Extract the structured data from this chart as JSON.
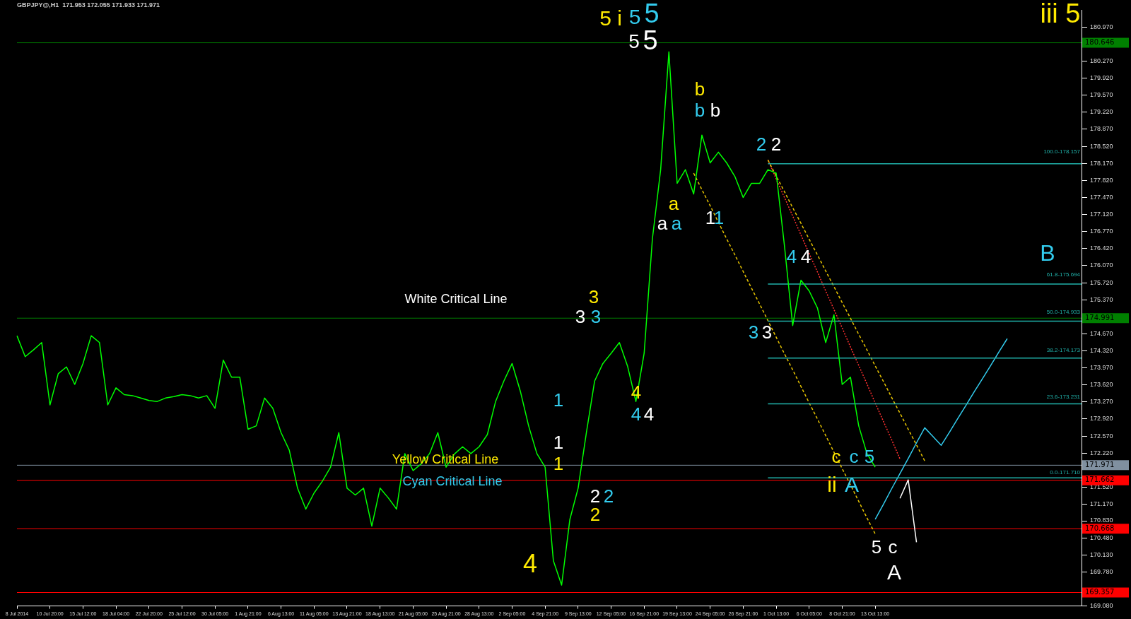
{
  "chart_data": {
    "type": "line",
    "title": "GBPJPY@,H1  171.953 172.055 171.933 171.971",
    "categories": [
      "8 Jul 2014",
      null,
      null,
      null,
      "10 Jul 20:00",
      null,
      null,
      null,
      "15 Jul 12:00",
      null,
      null,
      null,
      "18 Jul 04:00",
      null,
      null,
      null,
      "22 Jul 20:00",
      null,
      null,
      null,
      "25 Jul 12:00",
      null,
      null,
      null,
      "30 Jul 05:00",
      null,
      null,
      null,
      "1 Aug 21:00",
      null,
      null,
      null,
      "6 Aug 13:00",
      null,
      null,
      null,
      "11 Aug 05:00",
      null,
      null,
      null,
      "13 Aug 21:00",
      null,
      null,
      null,
      "18 Aug 13:00",
      null,
      null,
      null,
      "21 Aug 05:00",
      null,
      null,
      null,
      "25 Aug 21:00",
      null,
      null,
      null,
      "28 Aug 13:00",
      null,
      null,
      null,
      "2 Sep 05:00",
      null,
      null,
      null,
      "4 Sep 21:00",
      null,
      null,
      null,
      "9 Sep 13:00",
      null,
      null,
      null,
      "12 Sep 05:00",
      null,
      null,
      null,
      "16 Sep 21:00",
      null,
      null,
      null,
      "19 Sep 13:00",
      null,
      null,
      null,
      "24 Sep 05:00",
      null,
      null,
      null,
      "26 Sep 21:00",
      null,
      null,
      null,
      "1 Oct 13:00",
      null,
      null,
      null,
      "6 Oct 05:00",
      null,
      null,
      null,
      "8 Oct 21:00",
      null,
      null,
      null,
      "13 Oct 13:00",
      null,
      null,
      null,
      null,
      null,
      null,
      null,
      null,
      null,
      null,
      null,
      null,
      null,
      null,
      null,
      null,
      null,
      null,
      null,
      null,
      null,
      null,
      null,
      null,
      null
    ],
    "series": [
      {
        "color": "#00ff00",
        "values": [
          174.63,
          174.2,
          174.34,
          174.49,
          173.21,
          173.85,
          173.99,
          173.63,
          174.06,
          174.63,
          174.49,
          173.21,
          173.56,
          173.42,
          173.4,
          173.35,
          173.3,
          173.28,
          173.35,
          173.38,
          173.42,
          173.4,
          173.35,
          173.4,
          173.14,
          174.13,
          173.78,
          173.78,
          172.71,
          172.78,
          173.35,
          173.14,
          172.64,
          172.28,
          171.5,
          171.07,
          171.4,
          171.64,
          171.93,
          172.64,
          171.5,
          171.36,
          171.5,
          170.72,
          171.5,
          171.3,
          171.07,
          172.21,
          171.86,
          172.0,
          172.21,
          172.64,
          171.93,
          172.2,
          172.35,
          172.21,
          172.35,
          172.6,
          173.28,
          173.7,
          174.06,
          173.49,
          172.78,
          172.21,
          171.93,
          170.01,
          169.51,
          170.86,
          171.5,
          172.64,
          173.7,
          174.06,
          174.27,
          174.49,
          174.0,
          173.28,
          174.27,
          176.62,
          178.04,
          180.46,
          177.76,
          178.04,
          177.54,
          178.75,
          178.18,
          178.4,
          178.18,
          177.9,
          177.47,
          177.76,
          177.76,
          178.04,
          177.97,
          176.48,
          174.84,
          175.77,
          175.55,
          175.2,
          174.49,
          175.06,
          173.63,
          173.78,
          172.78,
          172.21,
          171.93,
          null,
          null,
          null,
          null,
          null,
          null,
          null,
          null,
          null,
          null,
          null,
          null,
          null,
          null,
          null,
          null,
          null,
          null,
          null,
          null,
          null,
          null,
          null,
          null,
          null
        ]
      },
      {
        "color": "#20b2aa",
        "values": [
          null,
          null,
          null,
          null,
          null,
          null,
          null,
          null,
          null,
          null,
          null,
          null,
          null,
          null,
          null,
          null,
          null,
          null,
          null,
          null,
          null,
          null,
          null,
          null,
          null,
          null,
          null,
          null,
          null,
          null,
          null,
          null,
          null,
          null,
          null,
          null,
          null,
          null,
          null,
          null,
          null,
          null,
          null,
          null,
          null,
          null,
          null,
          null,
          null,
          null,
          null,
          null,
          null,
          null,
          null,
          null,
          null,
          null,
          null,
          null,
          null,
          null,
          null,
          null,
          null,
          null,
          null,
          null,
          null,
          null,
          null,
          null,
          null,
          null,
          null,
          null,
          null,
          null,
          null,
          null,
          null,
          null,
          null,
          null,
          null,
          null,
          null,
          null,
          null,
          null,
          null,
          178.16,
          178.16,
          178.16,
          178.16,
          178.16,
          178.16,
          178.16,
          178.16,
          178.16,
          178.16,
          178.16,
          178.16,
          178.16,
          178.16,
          178.16,
          178.16,
          178.16,
          178.16,
          178.16,
          178.16,
          178.16,
          178.16,
          178.16,
          178.16,
          178.16,
          178.16,
          178.16,
          178.16,
          178.16,
          178.16,
          178.16,
          178.16,
          178.16,
          178.16,
          178.16,
          178.16,
          178.16,
          178.16,
          178.16
        ]
      },
      {
        "color": "#20b2aa",
        "values": [
          null,
          null,
          null,
          null,
          null,
          null,
          null,
          null,
          null,
          null,
          null,
          null,
          null,
          null,
          null,
          null,
          null,
          null,
          null,
          null,
          null,
          null,
          null,
          null,
          null,
          null,
          null,
          null,
          null,
          null,
          null,
          null,
          null,
          null,
          null,
          null,
          null,
          null,
          null,
          null,
          null,
          null,
          null,
          null,
          null,
          null,
          null,
          null,
          null,
          null,
          null,
          null,
          null,
          null,
          null,
          null,
          null,
          null,
          null,
          null,
          null,
          null,
          null,
          null,
          null,
          null,
          null,
          null,
          null,
          null,
          null,
          null,
          null,
          null,
          null,
          null,
          null,
          null,
          null,
          null,
          null,
          null,
          null,
          null,
          null,
          null,
          null,
          null,
          null,
          null,
          null,
          175.69,
          175.69,
          175.69,
          175.69,
          175.69,
          175.69,
          175.69,
          175.69,
          175.69,
          175.69,
          175.69,
          175.69,
          175.69,
          175.69,
          175.69,
          175.69,
          175.69,
          175.69,
          175.69,
          175.69,
          175.69,
          175.69,
          175.69,
          175.69,
          175.69,
          175.69,
          175.69,
          175.69,
          175.69,
          175.69,
          175.69,
          175.69,
          175.69,
          175.69,
          175.69,
          175.69,
          175.69,
          175.69,
          175.69
        ]
      },
      {
        "color": "#20b2aa",
        "values": [
          null,
          null,
          null,
          null,
          null,
          null,
          null,
          null,
          null,
          null,
          null,
          null,
          null,
          null,
          null,
          null,
          null,
          null,
          null,
          null,
          null,
          null,
          null,
          null,
          null,
          null,
          null,
          null,
          null,
          null,
          null,
          null,
          null,
          null,
          null,
          null,
          null,
          null,
          null,
          null,
          null,
          null,
          null,
          null,
          null,
          null,
          null,
          null,
          null,
          null,
          null,
          null,
          null,
          null,
          null,
          null,
          null,
          null,
          null,
          null,
          null,
          null,
          null,
          null,
          null,
          null,
          null,
          null,
          null,
          null,
          null,
          null,
          null,
          null,
          null,
          null,
          null,
          null,
          null,
          null,
          null,
          null,
          null,
          null,
          null,
          null,
          null,
          null,
          null,
          null,
          null,
          174.93,
          174.93,
          174.93,
          174.93,
          174.93,
          174.93,
          174.93,
          174.93,
          174.93,
          174.93,
          174.93,
          174.93,
          174.93,
          174.93,
          174.93,
          174.93,
          174.93,
          174.93,
          174.93,
          174.93,
          174.93,
          174.93,
          174.93,
          174.93,
          174.93,
          174.93,
          174.93,
          174.93,
          174.93,
          174.93,
          174.93,
          174.93,
          174.93,
          174.93,
          174.93,
          174.93,
          174.93,
          174.93,
          174.93
        ]
      },
      {
        "color": "#20b2aa",
        "values": [
          null,
          null,
          null,
          null,
          null,
          null,
          null,
          null,
          null,
          null,
          null,
          null,
          null,
          null,
          null,
          null,
          null,
          null,
          null,
          null,
          null,
          null,
          null,
          null,
          null,
          null,
          null,
          null,
          null,
          null,
          null,
          null,
          null,
          null,
          null,
          null,
          null,
          null,
          null,
          null,
          null,
          null,
          null,
          null,
          null,
          null,
          null,
          null,
          null,
          null,
          null,
          null,
          null,
          null,
          null,
          null,
          null,
          null,
          null,
          null,
          null,
          null,
          null,
          null,
          null,
          null,
          null,
          null,
          null,
          null,
          null,
          null,
          null,
          null,
          null,
          null,
          null,
          null,
          null,
          null,
          null,
          null,
          null,
          null,
          null,
          null,
          null,
          null,
          null,
          null,
          null,
          174.17,
          174.17,
          174.17,
          174.17,
          174.17,
          174.17,
          174.17,
          174.17,
          174.17,
          174.17,
          174.17,
          174.17,
          174.17,
          174.17,
          174.17,
          174.17,
          174.17,
          174.17,
          174.17,
          174.17,
          174.17,
          174.17,
          174.17,
          174.17,
          174.17,
          174.17,
          174.17,
          174.17,
          174.17,
          174.17,
          174.17,
          174.17,
          174.17,
          174.17,
          174.17,
          174.17,
          174.17,
          174.17,
          174.17
        ]
      },
      {
        "color": "#20b2aa",
        "values": [
          null,
          null,
          null,
          null,
          null,
          null,
          null,
          null,
          null,
          null,
          null,
          null,
          null,
          null,
          null,
          null,
          null,
          null,
          null,
          null,
          null,
          null,
          null,
          null,
          null,
          null,
          null,
          null,
          null,
          null,
          null,
          null,
          null,
          null,
          null,
          null,
          null,
          null,
          null,
          null,
          null,
          null,
          null,
          null,
          null,
          null,
          null,
          null,
          null,
          null,
          null,
          null,
          null,
          null,
          null,
          null,
          null,
          null,
          null,
          null,
          null,
          null,
          null,
          null,
          null,
          null,
          null,
          null,
          null,
          null,
          null,
          null,
          null,
          null,
          null,
          null,
          null,
          null,
          null,
          null,
          null,
          null,
          null,
          null,
          null,
          null,
          null,
          null,
          null,
          null,
          null,
          173.23,
          173.23,
          173.23,
          173.23,
          173.23,
          173.23,
          173.23,
          173.23,
          173.23,
          173.23,
          173.23,
          173.23,
          173.23,
          173.23,
          173.23,
          173.23,
          173.23,
          173.23,
          173.23,
          173.23,
          173.23,
          173.23,
          173.23,
          173.23,
          173.23,
          173.23,
          173.23,
          173.23,
          173.23,
          173.23,
          173.23,
          173.23,
          173.23,
          173.23,
          173.23,
          173.23,
          173.23,
          173.23,
          173.23
        ]
      },
      {
        "color": "#20b2aa",
        "values": [
          null,
          null,
          null,
          null,
          null,
          null,
          null,
          null,
          null,
          null,
          null,
          null,
          null,
          null,
          null,
          null,
          null,
          null,
          null,
          null,
          null,
          null,
          null,
          null,
          null,
          null,
          null,
          null,
          null,
          null,
          null,
          null,
          null,
          null,
          null,
          null,
          null,
          null,
          null,
          null,
          null,
          null,
          null,
          null,
          null,
          null,
          null,
          null,
          null,
          null,
          null,
          null,
          null,
          null,
          null,
          null,
          null,
          null,
          null,
          null,
          null,
          null,
          null,
          null,
          null,
          null,
          null,
          null,
          null,
          null,
          null,
          null,
          null,
          null,
          null,
          null,
          null,
          null,
          null,
          null,
          null,
          null,
          null,
          null,
          null,
          null,
          null,
          null,
          null,
          null,
          null,
          171.71,
          171.71,
          171.71,
          171.71,
          171.71,
          171.71,
          171.71,
          171.71,
          171.71,
          171.71,
          171.71,
          171.71,
          171.71,
          171.71,
          171.71,
          171.71,
          171.71,
          171.71,
          171.71,
          171.71,
          171.71,
          171.71,
          171.71,
          171.71,
          171.71,
          171.71,
          171.71,
          171.71,
          171.71,
          171.71,
          171.71,
          171.71,
          171.71,
          171.71,
          171.71,
          171.71,
          171.71,
          171.71,
          171.71
        ]
      },
      {
        "color": "#e6c300",
        "line_style": "dashed",
        "values": [
          null,
          null,
          null,
          null,
          null,
          null,
          null,
          null,
          null,
          null,
          null,
          null,
          null,
          null,
          null,
          null,
          null,
          null,
          null,
          null,
          null,
          null,
          null,
          null,
          null,
          null,
          null,
          null,
          null,
          null,
          null,
          null,
          null,
          null,
          null,
          null,
          null,
          null,
          null,
          null,
          null,
          null,
          null,
          null,
          null,
          null,
          null,
          null,
          null,
          null,
          null,
          null,
          null,
          null,
          null,
          null,
          null,
          null,
          null,
          null,
          null,
          null,
          null,
          null,
          null,
          null,
          null,
          null,
          null,
          null,
          null,
          null,
          null,
          null,
          null,
          null,
          null,
          null,
          null,
          null,
          null,
          null,
          177.97,
          177.63,
          177.3,
          176.96,
          176.62,
          176.29,
          175.95,
          175.61,
          175.28,
          174.94,
          174.6,
          174.26,
          173.93,
          173.59,
          173.25,
          172.92,
          172.58,
          172.24,
          171.9,
          171.57,
          171.23,
          170.89,
          170.56,
          null,
          null,
          null,
          null,
          null,
          null,
          null,
          null,
          null,
          null,
          null,
          null,
          null,
          null,
          null,
          null,
          null,
          null,
          null,
          null,
          null,
          null,
          null,
          null,
          null
        ]
      },
      {
        "color": "#e6c300",
        "line_style": "dashed",
        "values": [
          null,
          null,
          null,
          null,
          null,
          null,
          null,
          null,
          null,
          null,
          null,
          null,
          null,
          null,
          null,
          null,
          null,
          null,
          null,
          null,
          null,
          null,
          null,
          null,
          null,
          null,
          null,
          null,
          null,
          null,
          null,
          null,
          null,
          null,
          null,
          null,
          null,
          null,
          null,
          null,
          null,
          null,
          null,
          null,
          null,
          null,
          null,
          null,
          null,
          null,
          null,
          null,
          null,
          null,
          null,
          null,
          null,
          null,
          null,
          null,
          null,
          null,
          null,
          null,
          null,
          null,
          null,
          null,
          null,
          null,
          null,
          null,
          null,
          null,
          null,
          null,
          null,
          null,
          null,
          null,
          null,
          null,
          null,
          null,
          null,
          null,
          null,
          null,
          null,
          null,
          null,
          178.24,
          177.91,
          177.59,
          177.26,
          176.94,
          176.61,
          176.29,
          175.96,
          175.64,
          175.31,
          174.99,
          174.66,
          174.34,
          174.01,
          173.69,
          173.36,
          173.04,
          172.71,
          172.39,
          172.06,
          null,
          null,
          null,
          null,
          null,
          null,
          null,
          null,
          null,
          null,
          null,
          null,
          null,
          null,
          null,
          null,
          null,
          null,
          null
        ]
      },
      {
        "color": "#ff3030",
        "line_style": "dotted",
        "values": [
          null,
          null,
          null,
          null,
          null,
          null,
          null,
          null,
          null,
          null,
          null,
          null,
          null,
          null,
          null,
          null,
          null,
          null,
          null,
          null,
          null,
          null,
          null,
          null,
          null,
          null,
          null,
          null,
          null,
          null,
          null,
          null,
          null,
          null,
          null,
          null,
          null,
          null,
          null,
          null,
          null,
          null,
          null,
          null,
          null,
          null,
          null,
          null,
          null,
          null,
          null,
          null,
          null,
          null,
          null,
          null,
          null,
          null,
          null,
          null,
          null,
          null,
          null,
          null,
          null,
          null,
          null,
          null,
          null,
          null,
          null,
          null,
          null,
          null,
          null,
          null,
          null,
          null,
          null,
          null,
          null,
          null,
          null,
          null,
          null,
          null,
          null,
          null,
          null,
          null,
          null,
          178.24,
          177.85,
          177.47,
          177.09,
          176.7,
          176.32,
          175.94,
          175.55,
          175.17,
          174.79,
          174.4,
          174.02,
          173.64,
          173.25,
          172.87,
          172.49,
          172.1,
          null,
          null,
          null,
          null,
          null,
          null,
          null,
          null,
          null,
          null,
          null,
          null,
          null,
          null,
          null,
          null,
          null,
          null,
          null,
          null,
          null,
          null
        ]
      },
      {
        "color": "#33ccee",
        "values": [
          null,
          null,
          null,
          null,
          null,
          null,
          null,
          null,
          null,
          null,
          null,
          null,
          null,
          null,
          null,
          null,
          null,
          null,
          null,
          null,
          null,
          null,
          null,
          null,
          null,
          null,
          null,
          null,
          null,
          null,
          null,
          null,
          null,
          null,
          null,
          null,
          null,
          null,
          null,
          null,
          null,
          null,
          null,
          null,
          null,
          null,
          null,
          null,
          null,
          null,
          null,
          null,
          null,
          null,
          null,
          null,
          null,
          null,
          null,
          null,
          null,
          null,
          null,
          null,
          null,
          null,
          null,
          null,
          null,
          null,
          null,
          null,
          null,
          null,
          null,
          null,
          null,
          null,
          null,
          null,
          null,
          null,
          null,
          null,
          null,
          null,
          null,
          null,
          null,
          null,
          null,
          null,
          null,
          null,
          null,
          null,
          null,
          null,
          null,
          null,
          null,
          null,
          null,
          null,
          170.86,
          171.17,
          171.49,
          171.8,
          172.11,
          172.43,
          172.74,
          172.56,
          172.38,
          172.65,
          172.93,
          173.2,
          173.48,
          173.75,
          174.02,
          174.3,
          174.57,
          null,
          null,
          null,
          null,
          null,
          null,
          null,
          null,
          null
        ]
      },
      {
        "color": "#ffffff",
        "values": [
          null,
          null,
          null,
          null,
          null,
          null,
          null,
          null,
          null,
          null,
          null,
          null,
          null,
          null,
          null,
          null,
          null,
          null,
          null,
          null,
          null,
          null,
          null,
          null,
          null,
          null,
          null,
          null,
          null,
          null,
          null,
          null,
          null,
          null,
          null,
          null,
          null,
          null,
          null,
          null,
          null,
          null,
          null,
          null,
          null,
          null,
          null,
          null,
          null,
          null,
          null,
          null,
          null,
          null,
          null,
          null,
          null,
          null,
          null,
          null,
          null,
          null,
          null,
          null,
          null,
          null,
          null,
          null,
          null,
          null,
          null,
          null,
          null,
          null,
          null,
          null,
          null,
          null,
          null,
          null,
          null,
          null,
          null,
          null,
          null,
          null,
          null,
          null,
          null,
          null,
          null,
          null,
          null,
          null,
          null,
          null,
          null,
          null,
          null,
          null,
          null,
          null,
          null,
          null,
          null,
          null,
          null,
          171.29,
          171.67,
          170.39,
          null,
          null,
          null,
          null,
          null,
          null,
          null,
          null,
          null,
          null,
          null,
          null,
          null,
          null,
          null,
          null,
          null,
          null,
          null,
          null
        ]
      }
    ],
    "ylim": [
      169.08,
      181.31
    ],
    "yticks": [
      {
        "value": 169.08,
        "label": "169.080"
      },
      {
        "value": 169.78,
        "label": "169.780"
      },
      {
        "value": 170.13,
        "label": "170.130"
      },
      {
        "value": 170.48,
        "label": "170.480"
      },
      {
        "value": 170.83,
        "label": "170.830"
      },
      {
        "value": 171.17,
        "label": "171.170"
      },
      {
        "value": 171.52,
        "label": "171.520"
      },
      {
        "value": 172.22,
        "label": "172.220"
      },
      {
        "value": 172.57,
        "label": "172.570"
      },
      {
        "value": 172.92,
        "label": "172.920"
      },
      {
        "value": 173.27,
        "label": "173.270"
      },
      {
        "value": 173.62,
        "label": "173.620"
      },
      {
        "value": 173.97,
        "label": "173.970"
      },
      {
        "value": 174.32,
        "label": "174.320"
      },
      {
        "value": 174.67,
        "label": "174.670"
      },
      {
        "value": 175.37,
        "label": "175.370"
      },
      {
        "value": 175.72,
        "label": "175.720"
      },
      {
        "value": 176.07,
        "label": "176.070"
      },
      {
        "value": 176.42,
        "label": "176.420"
      },
      {
        "value": 176.77,
        "label": "176.770"
      },
      {
        "value": 177.12,
        "label": "177.120"
      },
      {
        "value": 177.47,
        "label": "177.470"
      },
      {
        "value": 177.82,
        "label": "177.820"
      },
      {
        "value": 178.17,
        "label": "178.170"
      },
      {
        "value": 178.52,
        "label": "178.520"
      },
      {
        "value": 178.87,
        "label": "178.870"
      },
      {
        "value": 179.22,
        "label": "179.220"
      },
      {
        "value": 179.57,
        "label": "179.570"
      },
      {
        "value": 179.92,
        "label": "179.920"
      },
      {
        "value": 180.27,
        "label": "180.270"
      },
      {
        "value": 180.97,
        "label": "180.970"
      }
    ],
    "ref_lines": [
      {
        "axis": "y",
        "value": 180.646,
        "label": "180.646",
        "color": "#008000"
      },
      {
        "axis": "y",
        "value": 174.991,
        "label": "174.991",
        "color": "#008000"
      },
      {
        "axis": "y",
        "value": 171.971,
        "label": "171.971",
        "color": "#8090a0"
      },
      {
        "axis": "y",
        "value": 171.662,
        "label": "171.662",
        "color": "#ff0000"
      },
      {
        "axis": "y",
        "value": 170.668,
        "label": "170.668",
        "color": "#ff0000"
      },
      {
        "axis": "y",
        "value": 169.357,
        "label": "169.357",
        "color": "#ff0000"
      }
    ],
    "annotations": [
      "100.0-178.157",
      "61.8-175.694",
      "50.0-174.933",
      "38.2-174.173",
      "23.6-173.231",
      "0.0-171.710",
      "White Critical Line",
      "Yellow Critical Line",
      "Cyan Critical Line",
      "5 i",
      "5",
      "5",
      "5",
      "5",
      "iii 5",
      "b",
      "b",
      "b",
      "a",
      "a",
      "a",
      "1",
      "1",
      "2",
      "2",
      "4",
      "4",
      "3",
      "3",
      "3",
      "3",
      "3",
      "4",
      "4",
      "4",
      "1",
      "1",
      "1",
      "2",
      "2",
      "2",
      "4",
      "c",
      "c",
      "5",
      "ii",
      "A",
      "5",
      "c",
      "A",
      "B"
    ],
    "marker": "none",
    "grid": false,
    "legend": false
  }
}
